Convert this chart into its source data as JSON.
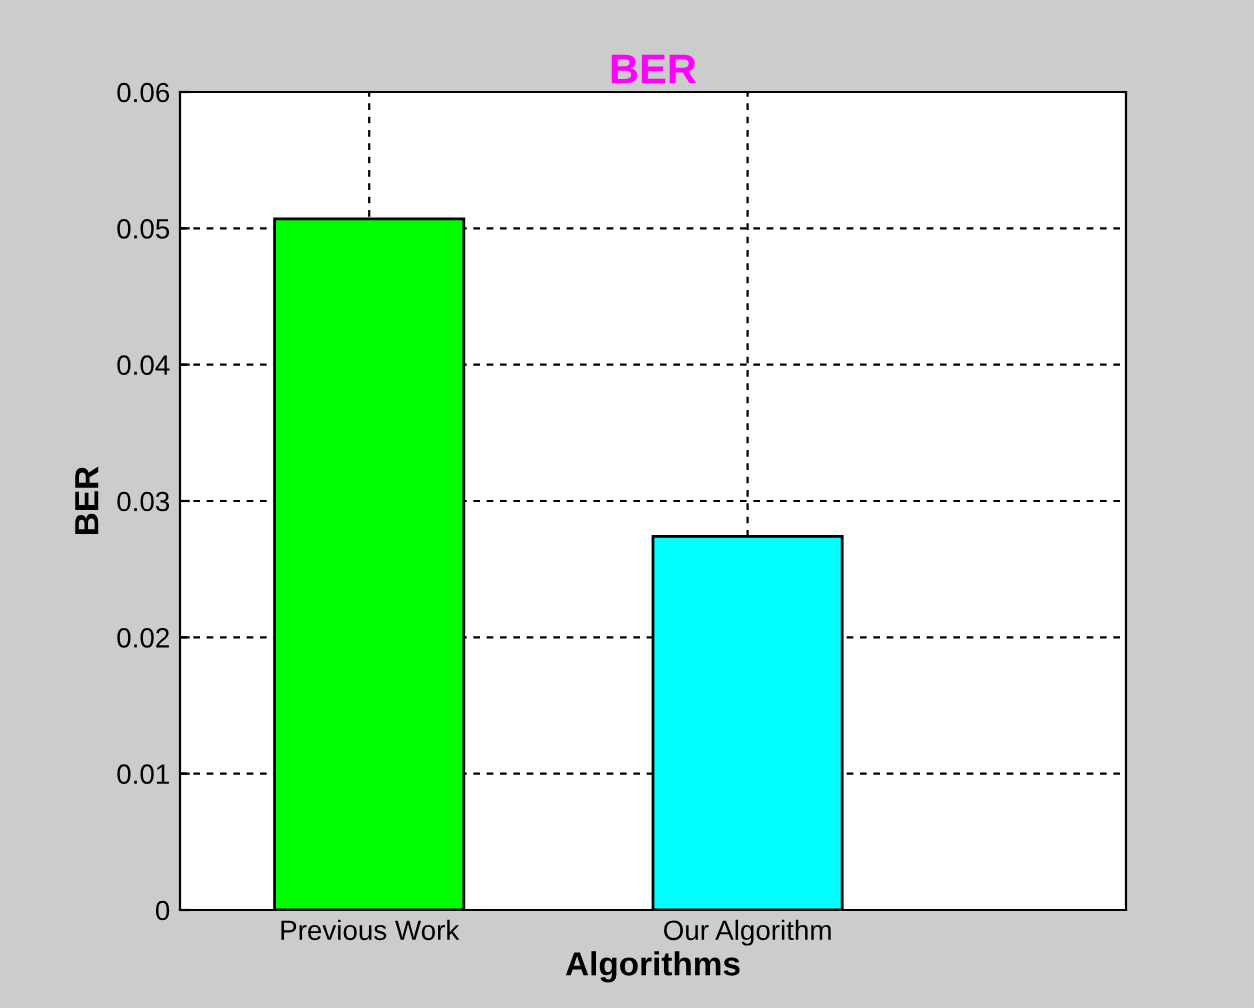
{
  "chart_data": {
    "type": "bar",
    "title": "BER",
    "xlabel": "Algorithms",
    "ylabel": "BER",
    "categories": [
      "Previous Work",
      "Our Algorithm"
    ],
    "values": [
      0.0507,
      0.0274
    ],
    "colors": [
      "#00ff00",
      "#00ffff"
    ],
    "ylim": [
      0,
      0.06
    ],
    "yticks": [
      0,
      0.01,
      0.02,
      0.03,
      0.04,
      0.05,
      0.06
    ],
    "grid": true,
    "legend": false
  }
}
